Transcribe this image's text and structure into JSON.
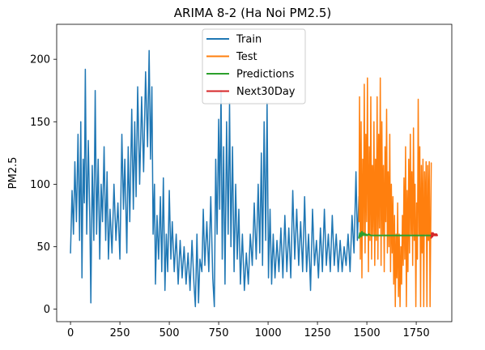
{
  "chart_data": {
    "type": "line",
    "title": "ARIMA 8-2 (Ha Noi PM2.5)",
    "xlabel": "",
    "ylabel": "PM2.5",
    "xlim": [
      -70,
      1930
    ],
    "ylim": [
      -10,
      228
    ],
    "x_ticks": [
      0,
      250,
      500,
      750,
      1000,
      1250,
      1500,
      1750
    ],
    "y_ticks": [
      0,
      50,
      100,
      150,
      200
    ],
    "grid": false,
    "legend_position": "top-center",
    "series": [
      {
        "name": "Train",
        "color": "#1f77b4",
        "x_range": [
          0,
          1460
        ],
        "points": [
          [
            0,
            45
          ],
          [
            8,
            95
          ],
          [
            15,
            60
          ],
          [
            22,
            118
          ],
          [
            30,
            70
          ],
          [
            38,
            140
          ],
          [
            46,
            55
          ],
          [
            52,
            150
          ],
          [
            58,
            25
          ],
          [
            64,
            120
          ],
          [
            70,
            85
          ],
          [
            75,
            192
          ],
          [
            82,
            60
          ],
          [
            90,
            135
          ],
          [
            98,
            70
          ],
          [
            103,
            5
          ],
          [
            110,
            115
          ],
          [
            118,
            55
          ],
          [
            125,
            175
          ],
          [
            132,
            60
          ],
          [
            140,
            120
          ],
          [
            148,
            40
          ],
          [
            155,
            100
          ],
          [
            162,
            70
          ],
          [
            170,
            130
          ],
          [
            178,
            55
          ],
          [
            185,
            110
          ],
          [
            192,
            40
          ],
          [
            200,
            80
          ],
          [
            210,
            45
          ],
          [
            220,
            100
          ],
          [
            230,
            55
          ],
          [
            240,
            85
          ],
          [
            250,
            40
          ],
          [
            260,
            140
          ],
          [
            268,
            80
          ],
          [
            275,
            120
          ],
          [
            285,
            45
          ],
          [
            292,
            130
          ],
          [
            300,
            70
          ],
          [
            310,
            160
          ],
          [
            318,
            80
          ],
          [
            325,
            150
          ],
          [
            332,
            90
          ],
          [
            340,
            178
          ],
          [
            350,
            100
          ],
          [
            360,
            170
          ],
          [
            370,
            110
          ],
          [
            380,
            190
          ],
          [
            390,
            130
          ],
          [
            398,
            207
          ],
          [
            405,
            120
          ],
          [
            412,
            178
          ],
          [
            418,
            60
          ],
          [
            425,
            100
          ],
          [
            430,
            20
          ],
          [
            438,
            75
          ],
          [
            446,
            40
          ],
          [
            455,
            90
          ],
          [
            462,
            30
          ],
          [
            470,
            105
          ],
          [
            478,
            15
          ],
          [
            485,
            60
          ],
          [
            492,
            30
          ],
          [
            500,
            95
          ],
          [
            508,
            40
          ],
          [
            515,
            70
          ],
          [
            525,
            30
          ],
          [
            535,
            60
          ],
          [
            545,
            20
          ],
          [
            555,
            55
          ],
          [
            565,
            25
          ],
          [
            575,
            50
          ],
          [
            585,
            20
          ],
          [
            595,
            45
          ],
          [
            605,
            15
          ],
          [
            615,
            55
          ],
          [
            625,
            20
          ],
          [
            632,
            2
          ],
          [
            640,
            60
          ],
          [
            648,
            5
          ],
          [
            655,
            40
          ],
          [
            665,
            30
          ],
          [
            672,
            80
          ],
          [
            680,
            35
          ],
          [
            690,
            70
          ],
          [
            700,
            30
          ],
          [
            710,
            90
          ],
          [
            720,
            25
          ],
          [
            728,
            2
          ],
          [
            735,
            120
          ],
          [
            742,
            60
          ],
          [
            750,
            152
          ],
          [
            755,
            80
          ],
          [
            762,
            175
          ],
          [
            768,
            40
          ],
          [
            775,
            130
          ],
          [
            782,
            20
          ],
          [
            790,
            150
          ],
          [
            798,
            60
          ],
          [
            805,
            165
          ],
          [
            812,
            50
          ],
          [
            820,
            130
          ],
          [
            828,
            30
          ],
          [
            836,
            100
          ],
          [
            844,
            40
          ],
          [
            852,
            80
          ],
          [
            860,
            20
          ],
          [
            870,
            60
          ],
          [
            880,
            15
          ],
          [
            890,
            45
          ],
          [
            900,
            20
          ],
          [
            910,
            60
          ],
          [
            920,
            35
          ],
          [
            930,
            85
          ],
          [
            940,
            40
          ],
          [
            950,
            100
          ],
          [
            958,
            45
          ],
          [
            966,
            125
          ],
          [
            972,
            35
          ],
          [
            980,
            150
          ],
          [
            988,
            55
          ],
          [
            995,
            165
          ],
          [
            1002,
            25
          ],
          [
            1010,
            80
          ],
          [
            1018,
            20
          ],
          [
            1026,
            60
          ],
          [
            1035,
            25
          ],
          [
            1045,
            55
          ],
          [
            1055,
            30
          ],
          [
            1065,
            65
          ],
          [
            1075,
            25
          ],
          [
            1085,
            75
          ],
          [
            1095,
            30
          ],
          [
            1105,
            65
          ],
          [
            1115,
            25
          ],
          [
            1125,
            95
          ],
          [
            1135,
            40
          ],
          [
            1145,
            80
          ],
          [
            1155,
            35
          ],
          [
            1165,
            70
          ],
          [
            1175,
            30
          ],
          [
            1185,
            90
          ],
          [
            1195,
            30
          ],
          [
            1205,
            60
          ],
          [
            1215,
            15
          ],
          [
            1225,
            80
          ],
          [
            1235,
            35
          ],
          [
            1245,
            55
          ],
          [
            1255,
            25
          ],
          [
            1265,
            65
          ],
          [
            1275,
            30
          ],
          [
            1285,
            80
          ],
          [
            1295,
            35
          ],
          [
            1305,
            60
          ],
          [
            1315,
            30
          ],
          [
            1325,
            75
          ],
          [
            1335,
            35
          ],
          [
            1345,
            60
          ],
          [
            1355,
            30
          ],
          [
            1365,
            55
          ],
          [
            1375,
            30
          ],
          [
            1385,
            50
          ],
          [
            1395,
            35
          ],
          [
            1405,
            60
          ],
          [
            1415,
            30
          ],
          [
            1425,
            75
          ],
          [
            1435,
            45
          ],
          [
            1445,
            110
          ],
          [
            1452,
            55
          ],
          [
            1460,
            90
          ]
        ]
      },
      {
        "name": "Test",
        "color": "#ff7f0e",
        "x_range": [
          1460,
          1826
        ],
        "points": [
          [
            1460,
            70
          ],
          [
            1463,
            170
          ],
          [
            1467,
            40
          ],
          [
            1471,
            150
          ],
          [
            1475,
            25
          ],
          [
            1479,
            120
          ],
          [
            1483,
            60
          ],
          [
            1487,
            180
          ],
          [
            1491,
            45
          ],
          [
            1495,
            140
          ],
          [
            1499,
            70
          ],
          [
            1503,
            185
          ],
          [
            1508,
            30
          ],
          [
            1512,
            130
          ],
          [
            1516,
            55
          ],
          [
            1520,
            170
          ],
          [
            1524,
            40
          ],
          [
            1528,
            115
          ],
          [
            1532,
            60
          ],
          [
            1536,
            150
          ],
          [
            1540,
            35
          ],
          [
            1544,
            120
          ],
          [
            1548,
            55
          ],
          [
            1552,
            170
          ],
          [
            1556,
            40
          ],
          [
            1560,
            140
          ],
          [
            1564,
            65
          ],
          [
            1568,
            185
          ],
          [
            1572,
            35
          ],
          [
            1576,
            150
          ],
          [
            1580,
            60
          ],
          [
            1584,
            115
          ],
          [
            1588,
            30
          ],
          [
            1592,
            130
          ],
          [
            1596,
            70
          ],
          [
            1600,
            160
          ],
          [
            1604,
            45
          ],
          [
            1608,
            110
          ],
          [
            1612,
            50
          ],
          [
            1616,
            140
          ],
          [
            1620,
            30
          ],
          [
            1624,
            100
          ],
          [
            1628,
            45
          ],
          [
            1632,
            90
          ],
          [
            1636,
            20
          ],
          [
            1640,
            75
          ],
          [
            1644,
            2
          ],
          [
            1648,
            60
          ],
          [
            1652,
            25
          ],
          [
            1656,
            85
          ],
          [
            1660,
            10
          ],
          [
            1664,
            60
          ],
          [
            1668,
            2
          ],
          [
            1672,
            50
          ],
          [
            1676,
            20
          ],
          [
            1680,
            75
          ],
          [
            1684,
            35
          ],
          [
            1688,
            105
          ],
          [
            1692,
            40
          ],
          [
            1696,
            130
          ],
          [
            1700,
            2
          ],
          [
            1704,
            95
          ],
          [
            1708,
            30
          ],
          [
            1712,
            120
          ],
          [
            1716,
            45
          ],
          [
            1720,
            140
          ],
          [
            1724,
            60
          ],
          [
            1728,
            110
          ],
          [
            1732,
            35
          ],
          [
            1736,
            145
          ],
          [
            1740,
            55
          ],
          [
            1744,
            100
          ],
          [
            1748,
            2
          ],
          [
            1752,
            85
          ],
          [
            1756,
            40
          ],
          [
            1760,
            168
          ],
          [
            1764,
            60
          ],
          [
            1768,
            130
          ],
          [
            1772,
            2
          ],
          [
            1776,
            115
          ],
          [
            1780,
            45
          ],
          [
            1784,
            120
          ],
          [
            1788,
            2
          ],
          [
            1792,
            110
          ],
          [
            1796,
            60
          ],
          [
            1800,
            118
          ],
          [
            1804,
            2
          ],
          [
            1808,
            115
          ],
          [
            1812,
            55
          ],
          [
            1816,
            118
          ],
          [
            1820,
            2
          ],
          [
            1826,
            117
          ]
        ]
      },
      {
        "name": "Predictions",
        "color": "#2ca02c",
        "x_range": [
          1460,
          1826
        ],
        "points": [
          [
            1460,
            57
          ],
          [
            1465,
            61
          ],
          [
            1470,
            58
          ],
          [
            1475,
            62
          ],
          [
            1480,
            59
          ],
          [
            1485,
            61
          ],
          [
            1490,
            59
          ],
          [
            1495,
            60
          ],
          [
            1500,
            59
          ],
          [
            1510,
            60
          ],
          [
            1520,
            59
          ],
          [
            1540,
            59
          ],
          [
            1560,
            59
          ],
          [
            1600,
            59
          ],
          [
            1650,
            59
          ],
          [
            1700,
            59
          ],
          [
            1750,
            59
          ],
          [
            1800,
            59
          ],
          [
            1826,
            59
          ]
        ]
      },
      {
        "name": "Next30Day",
        "color": "#d62728",
        "x_range": [
          1826,
          1856
        ],
        "points": [
          [
            1826,
            57
          ],
          [
            1829,
            61
          ],
          [
            1832,
            58
          ],
          [
            1835,
            61
          ],
          [
            1838,
            59
          ],
          [
            1841,
            60
          ],
          [
            1844,
            59
          ],
          [
            1847,
            60
          ],
          [
            1850,
            59
          ],
          [
            1853,
            60
          ],
          [
            1856,
            59
          ]
        ]
      }
    ]
  }
}
